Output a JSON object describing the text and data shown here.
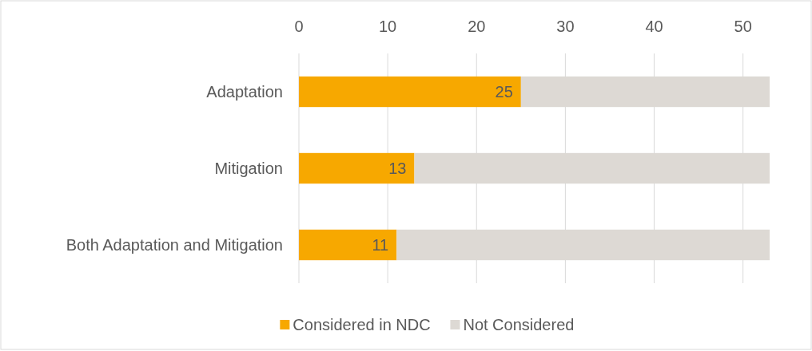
{
  "chart_data": {
    "type": "bar",
    "orientation": "horizontal",
    "stacked": true,
    "categories": [
      "Adaptation",
      "Mitigation",
      "Both Adaptation and Mitigation"
    ],
    "series": [
      {
        "name": "Considered in NDC",
        "color": "#f7a800",
        "values": [
          25,
          13,
          11
        ],
        "value_labels": [
          "25",
          "13",
          "11"
        ]
      },
      {
        "name": "Not Considered",
        "color": "#ddd9d4",
        "values": [
          28,
          40,
          42
        ]
      }
    ],
    "xlim": [
      0,
      53
    ],
    "xticks": [
      0,
      10,
      20,
      30,
      40,
      50
    ],
    "grid": "x",
    "legend": "bottom"
  }
}
